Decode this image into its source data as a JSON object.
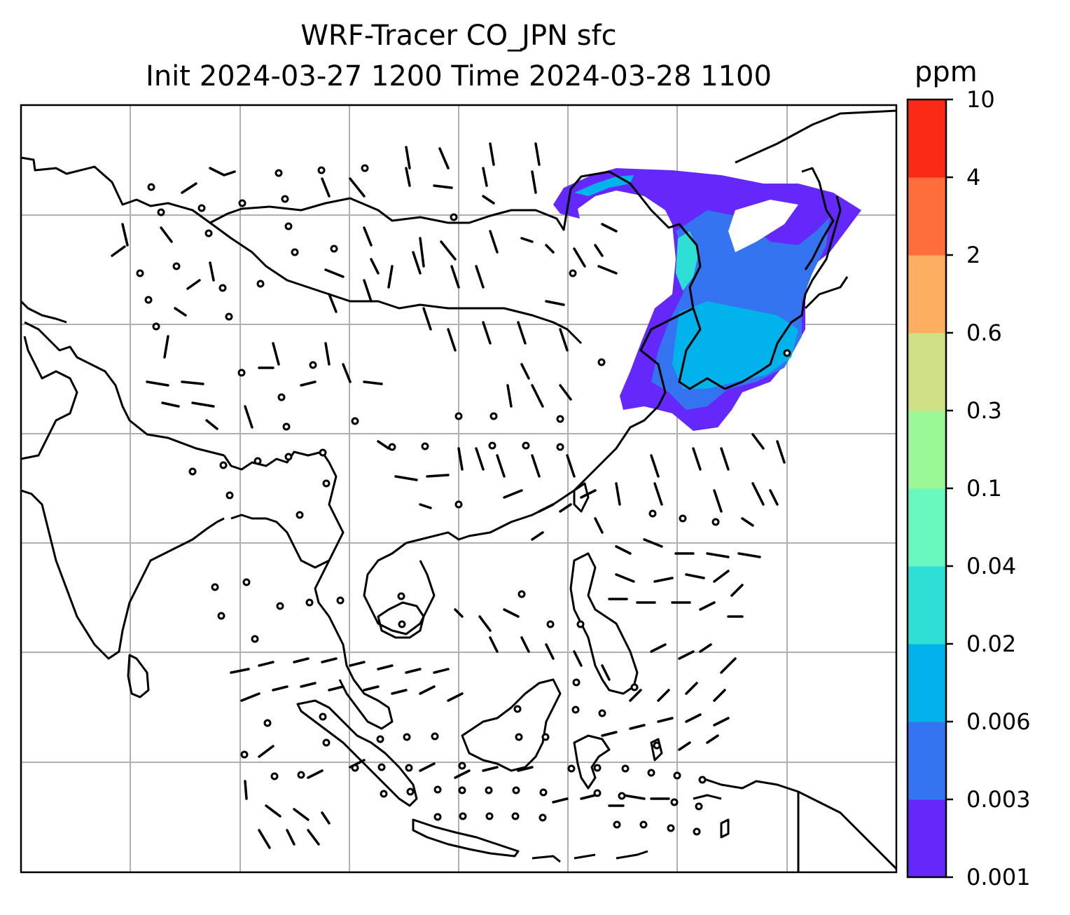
{
  "title": {
    "line1": "WRF-Tracer CO_JPN sfc",
    "line2": "Init 2024-03-27 1200 Time 2024-03-28 1100"
  },
  "map": {
    "gridlines": true,
    "coastline_color": "#000000",
    "grid_color": "#b0b0b0",
    "wind_barb_color": "#000000",
    "plume_region": "northeast (Japan / Korea / NE China)"
  },
  "colorbar": {
    "unit": "ppm",
    "ticks": [
      "10",
      "4",
      "2",
      "0.6",
      "0.3",
      "0.1",
      "0.04",
      "0.02",
      "0.006",
      "0.003",
      "0.001"
    ],
    "levels": [
      {
        "from": "0.001",
        "to": "0.003",
        "color": "#6528fa"
      },
      {
        "from": "0.003",
        "to": "0.006",
        "color": "#3474f0"
      },
      {
        "from": "0.006",
        "to": "0.02",
        "color": "#02b2ea"
      },
      {
        "from": "0.02",
        "to": "0.04",
        "color": "#2ddfd5"
      },
      {
        "from": "0.04",
        "to": "0.1",
        "color": "#69f9be"
      },
      {
        "from": "0.1",
        "to": "0.3",
        "color": "#9cf796"
      },
      {
        "from": "0.3",
        "to": "0.6",
        "color": "#d0e185"
      },
      {
        "from": "0.6",
        "to": "2",
        "color": "#feae60"
      },
      {
        "from": "2",
        "to": "4",
        "color": "#fe6e3a"
      },
      {
        "from": "4",
        "to": "10",
        "color": "#fb2a16"
      }
    ]
  }
}
